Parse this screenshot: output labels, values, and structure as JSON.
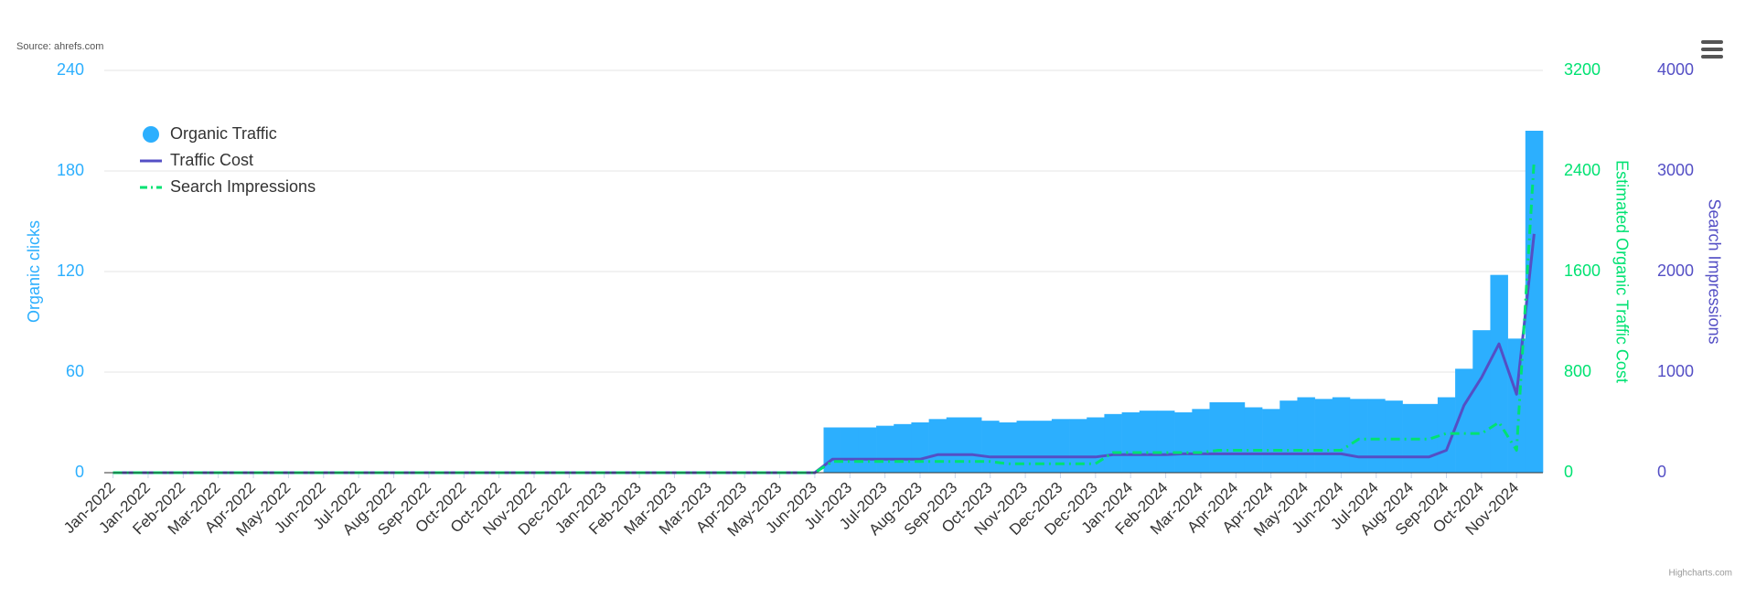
{
  "chart_data": {
    "type": "combo",
    "source": "Source: ahrefs.com",
    "credits": "Highcharts.com",
    "categories": [
      "Jan-2022",
      null,
      "Jan-2022",
      null,
      "Feb-2022",
      null,
      "Mar-2022",
      null,
      "Apr-2022",
      null,
      "May-2022",
      null,
      "Jun-2022",
      null,
      "Jul-2022",
      null,
      "Aug-2022",
      null,
      "Sep-2022",
      null,
      "Oct-2022",
      null,
      "Oct-2022",
      null,
      "Nov-2022",
      null,
      "Dec-2022",
      null,
      "Jan-2023",
      null,
      "Feb-2023",
      null,
      "Mar-2023",
      null,
      "Mar-2023",
      null,
      "Apr-2023",
      null,
      "May-2023",
      null,
      "Jun-2023",
      null,
      "Jul-2023",
      null,
      "Jul-2023",
      null,
      "Aug-2023",
      null,
      "Sep-2023",
      null,
      "Oct-2023",
      null,
      "Nov-2023",
      null,
      "Dec-2023",
      null,
      "Dec-2023",
      null,
      "Jan-2024",
      null,
      "Feb-2024",
      null,
      "Mar-2024",
      null,
      "Apr-2024",
      null,
      "Apr-2024",
      null,
      "May-2024",
      null,
      "Jun-2024",
      null,
      "Jul-2024",
      null,
      "Aug-2024",
      null,
      "Sep-2024",
      null,
      "Oct-2024",
      null,
      "Nov-2024",
      null
    ],
    "series": [
      {
        "name": "Organic Traffic",
        "type": "column",
        "axis": "y",
        "color": "#2caffe",
        "values": [
          0,
          0,
          0,
          0,
          0,
          0,
          0,
          0,
          0,
          0,
          0,
          0,
          0,
          0,
          0,
          0,
          0,
          0,
          0,
          0,
          0,
          0,
          0,
          0,
          0,
          0,
          0,
          0,
          0,
          0,
          0,
          0,
          0,
          0,
          0,
          0,
          0,
          0,
          0,
          0,
          0,
          27,
          27,
          27,
          28,
          29,
          30,
          32,
          33,
          33,
          31,
          30,
          31,
          31,
          32,
          32,
          33,
          35,
          36,
          37,
          37,
          36,
          38,
          42,
          42,
          39,
          38,
          43,
          45,
          44,
          45,
          44,
          44,
          43,
          41,
          41,
          45,
          62,
          85,
          118,
          80,
          204
        ]
      },
      {
        "name": "Traffic Cost",
        "type": "line",
        "axis": "y2",
        "color": "#544fc5",
        "dash": false,
        "values": [
          0,
          0,
          0,
          0,
          0,
          0,
          0,
          0,
          0,
          0,
          0,
          0,
          0,
          0,
          0,
          0,
          0,
          0,
          0,
          0,
          0,
          0,
          0,
          0,
          0,
          0,
          0,
          0,
          0,
          0,
          0,
          0,
          0,
          0,
          0,
          0,
          0,
          0,
          0,
          0,
          0,
          107,
          107,
          107,
          107,
          107,
          107,
          143,
          143,
          143,
          125,
          125,
          125,
          125,
          125,
          125,
          125,
          143,
          143,
          143,
          143,
          150,
          150,
          150,
          150,
          150,
          150,
          150,
          150,
          150,
          150,
          125,
          125,
          125,
          125,
          125,
          178,
          535,
          757,
          1025,
          624,
          1900
        ]
      },
      {
        "name": "Search Impressions",
        "type": "line",
        "axis": "y3",
        "color": "#00e272",
        "dash": true,
        "values": [
          0,
          0,
          0,
          0,
          0,
          0,
          0,
          0,
          0,
          0,
          0,
          0,
          0,
          0,
          0,
          0,
          0,
          0,
          0,
          0,
          0,
          0,
          0,
          0,
          0,
          0,
          0,
          0,
          0,
          0,
          0,
          0,
          0,
          0,
          0,
          0,
          0,
          0,
          0,
          0,
          0,
          111,
          111,
          111,
          111,
          111,
          111,
          111,
          111,
          111,
          111,
          89,
          89,
          89,
          89,
          89,
          89,
          200,
          200,
          200,
          200,
          200,
          200,
          223,
          223,
          223,
          223,
          223,
          223,
          223,
          223,
          334,
          334,
          334,
          334,
          334,
          390,
          390,
          390,
          500,
          223,
          3108
        ]
      }
    ],
    "ylabel": "Organic clicks",
    "ylim": [
      0,
      240
    ],
    "yticks": [
      0,
      60,
      120,
      180,
      240
    ],
    "ycolor": "#2caffe",
    "y2label": "Estimated Organic Traffic Cost",
    "y2lim": [
      0,
      3200
    ],
    "y2ticks": [
      0,
      800,
      1600,
      2400,
      3200
    ],
    "y2color": "#00e272",
    "y3label": "Search Impressions",
    "y3lim": [
      0,
      4000
    ],
    "y3ticks": [
      0,
      1000,
      2000,
      3000,
      4000
    ],
    "y3color": "#544fc5",
    "grid": true,
    "legend": "top-left"
  }
}
